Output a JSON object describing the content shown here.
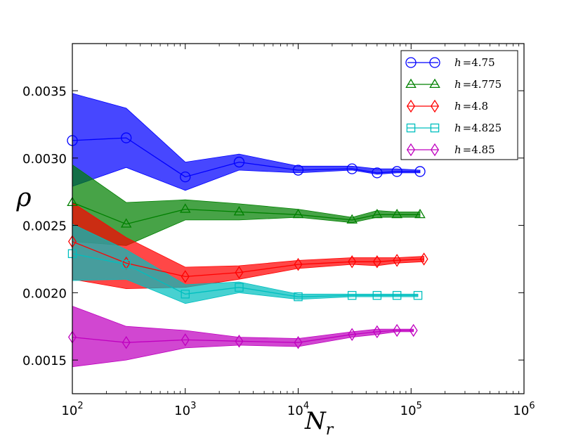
{
  "chart_data": {
    "type": "line",
    "title": "",
    "xlabel": "N",
    "xlabel_sub": "r",
    "ylabel": "ρ",
    "xscale": "log",
    "xlim": [
      100,
      1000000
    ],
    "ylim": [
      0.00125,
      0.00385
    ],
    "x_ticks": [
      {
        "value": 100,
        "base": "10",
        "exp": "2"
      },
      {
        "value": 1000,
        "base": "10",
        "exp": "3"
      },
      {
        "value": 10000,
        "base": "10",
        "exp": "4"
      },
      {
        "value": 100000,
        "base": "10",
        "exp": "5"
      },
      {
        "value": 1000000,
        "base": "10",
        "exp": "6"
      }
    ],
    "y_ticks": [
      {
        "value": 0.0015,
        "label": "0.0015"
      },
      {
        "value": 0.002,
        "label": "0.0020"
      },
      {
        "value": 0.0025,
        "label": "0.0025"
      },
      {
        "value": 0.003,
        "label": "0.0030"
      },
      {
        "value": 0.0035,
        "label": "0.0035"
      }
    ],
    "legend_position": "top-right",
    "series": [
      {
        "name": "h = 4.75",
        "label_var": "h",
        "label_eq": "=",
        "label_val": "4.75",
        "color": "#0000ff",
        "marker": "circle",
        "x": [
          100,
          300,
          1000,
          3000,
          10000,
          30000,
          50000,
          75000,
          120000
        ],
        "y": [
          0.00313,
          0.00315,
          0.00286,
          0.00297,
          0.00291,
          0.00292,
          0.00289,
          0.0029,
          0.0029
        ],
        "upper": [
          0.00348,
          0.00337,
          0.00297,
          0.00303,
          0.00294,
          0.00294,
          0.00292,
          0.00292,
          0.00291
        ],
        "lower": [
          0.00279,
          0.00293,
          0.00276,
          0.00291,
          0.00289,
          0.00291,
          0.00288,
          0.00289,
          0.00289
        ]
      },
      {
        "name": "h = 4.775",
        "label_var": "h",
        "label_eq": "=",
        "label_val": "4.775",
        "color": "#008000",
        "marker": "triangle",
        "x": [
          100,
          300,
          1000,
          3000,
          10000,
          30000,
          50000,
          75000,
          120000
        ],
        "y": [
          0.00267,
          0.00251,
          0.00262,
          0.0026,
          0.00258,
          0.00254,
          0.00258,
          0.00258,
          0.00258
        ],
        "upper": [
          0.00295,
          0.00267,
          0.00269,
          0.00266,
          0.00262,
          0.00256,
          0.00261,
          0.0026,
          0.0026
        ],
        "lower": [
          0.00238,
          0.00235,
          0.00254,
          0.00254,
          0.00256,
          0.00252,
          0.00256,
          0.00256,
          0.00256
        ]
      },
      {
        "name": "h = 4.8",
        "label_var": "h",
        "label_eq": "=",
        "label_val": "4.8",
        "color": "#ff0000",
        "marker": "diamond",
        "x": [
          100,
          300,
          1000,
          3000,
          10000,
          30000,
          50000,
          75000,
          130000
        ],
        "y": [
          0.00238,
          0.00222,
          0.00212,
          0.00215,
          0.00221,
          0.00223,
          0.00223,
          0.00224,
          0.00225
        ],
        "upper": [
          0.00267,
          0.00241,
          0.00219,
          0.0022,
          0.00224,
          0.00226,
          0.00226,
          0.00226,
          0.00227
        ],
        "lower": [
          0.0021,
          0.00203,
          0.00204,
          0.0021,
          0.00218,
          0.00221,
          0.0022,
          0.00222,
          0.00223
        ]
      },
      {
        "name": "h = 4.825",
        "label_var": "h",
        "label_eq": "=",
        "label_val": "4.825",
        "color": "#00bfbf",
        "marker": "square",
        "x": [
          100,
          300,
          1000,
          3000,
          10000,
          30000,
          50000,
          75000,
          115000
        ],
        "y": [
          0.00229,
          0.00221,
          0.00199,
          0.00204,
          0.00197,
          0.00198,
          0.00198,
          0.00198,
          0.00198
        ],
        "upper": [
          0.00251,
          0.00232,
          0.00206,
          0.00208,
          0.00199,
          0.00199,
          0.00199,
          0.00199,
          0.00199
        ],
        "lower": [
          0.00209,
          0.0021,
          0.00192,
          0.002,
          0.00195,
          0.00197,
          0.00197,
          0.00197,
          0.00197
        ]
      },
      {
        "name": "h = 4.85",
        "label_var": "h",
        "label_eq": "=",
        "label_val": "4.85",
        "color": "#bf00bf",
        "marker": "diamond",
        "x": [
          100,
          300,
          1000,
          3000,
          10000,
          30000,
          50000,
          75000,
          105000
        ],
        "y": [
          0.00167,
          0.00163,
          0.00165,
          0.00164,
          0.00163,
          0.00169,
          0.00171,
          0.00172,
          0.00172
        ],
        "upper": [
          0.0019,
          0.00175,
          0.00172,
          0.00167,
          0.00166,
          0.00171,
          0.00173,
          0.00173,
          0.00173
        ],
        "lower": [
          0.00145,
          0.0015,
          0.00159,
          0.00161,
          0.0016,
          0.00167,
          0.00169,
          0.00171,
          0.00171
        ]
      }
    ]
  }
}
